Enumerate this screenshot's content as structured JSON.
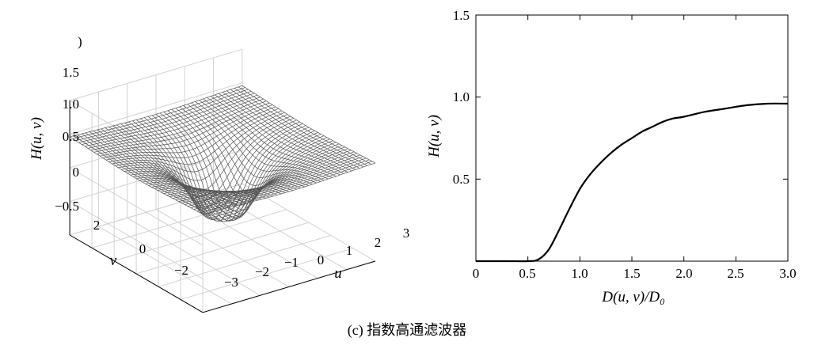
{
  "caption": "(c) 指数高通滤波器",
  "chart_data": [
    {
      "type": "surface",
      "z_label": "H(u, v)",
      "x_label": "u",
      "y_label": "v",
      "z_ticks": [
        "1.5",
        "1.0",
        "0.5",
        "0",
        "−0.5"
      ],
      "u_ticks": [
        "−3",
        "−2",
        "−1",
        "0",
        "1",
        "2",
        "3"
      ],
      "v_ticks": [
        "2",
        "0",
        "−2"
      ],
      "stray_mark": ")",
      "u_range": [
        -3,
        3
      ],
      "v_range": [
        -3,
        3
      ],
      "z_range": [
        -0.5,
        1.5
      ],
      "surface_function": "H = exp(-(D0/D)^n), exponential high-pass",
      "surface_color": "#555555",
      "grid": true
    },
    {
      "type": "line",
      "xlabel": "D(u, v)/D₀",
      "ylabel": "H(u, v)",
      "xlim": [
        0,
        3
      ],
      "ylim": [
        0,
        1.5
      ],
      "x_ticks": [
        "0",
        "0.5",
        "1.0",
        "1.5",
        "2.0",
        "2.5",
        "3.0"
      ],
      "y_ticks": [
        "0.5",
        "1.0",
        "1.5"
      ],
      "x": [
        0,
        0.3,
        0.5,
        0.6,
        0.7,
        0.8,
        0.9,
        1.0,
        1.1,
        1.2,
        1.3,
        1.4,
        1.5,
        1.6,
        1.7,
        1.8,
        1.9,
        2.0,
        2.2,
        2.4,
        2.6,
        2.8,
        3.0
      ],
      "y": [
        0,
        0,
        0,
        0.01,
        0.07,
        0.19,
        0.32,
        0.44,
        0.53,
        0.6,
        0.66,
        0.71,
        0.75,
        0.79,
        0.82,
        0.85,
        0.87,
        0.88,
        0.91,
        0.93,
        0.95,
        0.96,
        0.96
      ],
      "line_color": "#000000"
    }
  ]
}
